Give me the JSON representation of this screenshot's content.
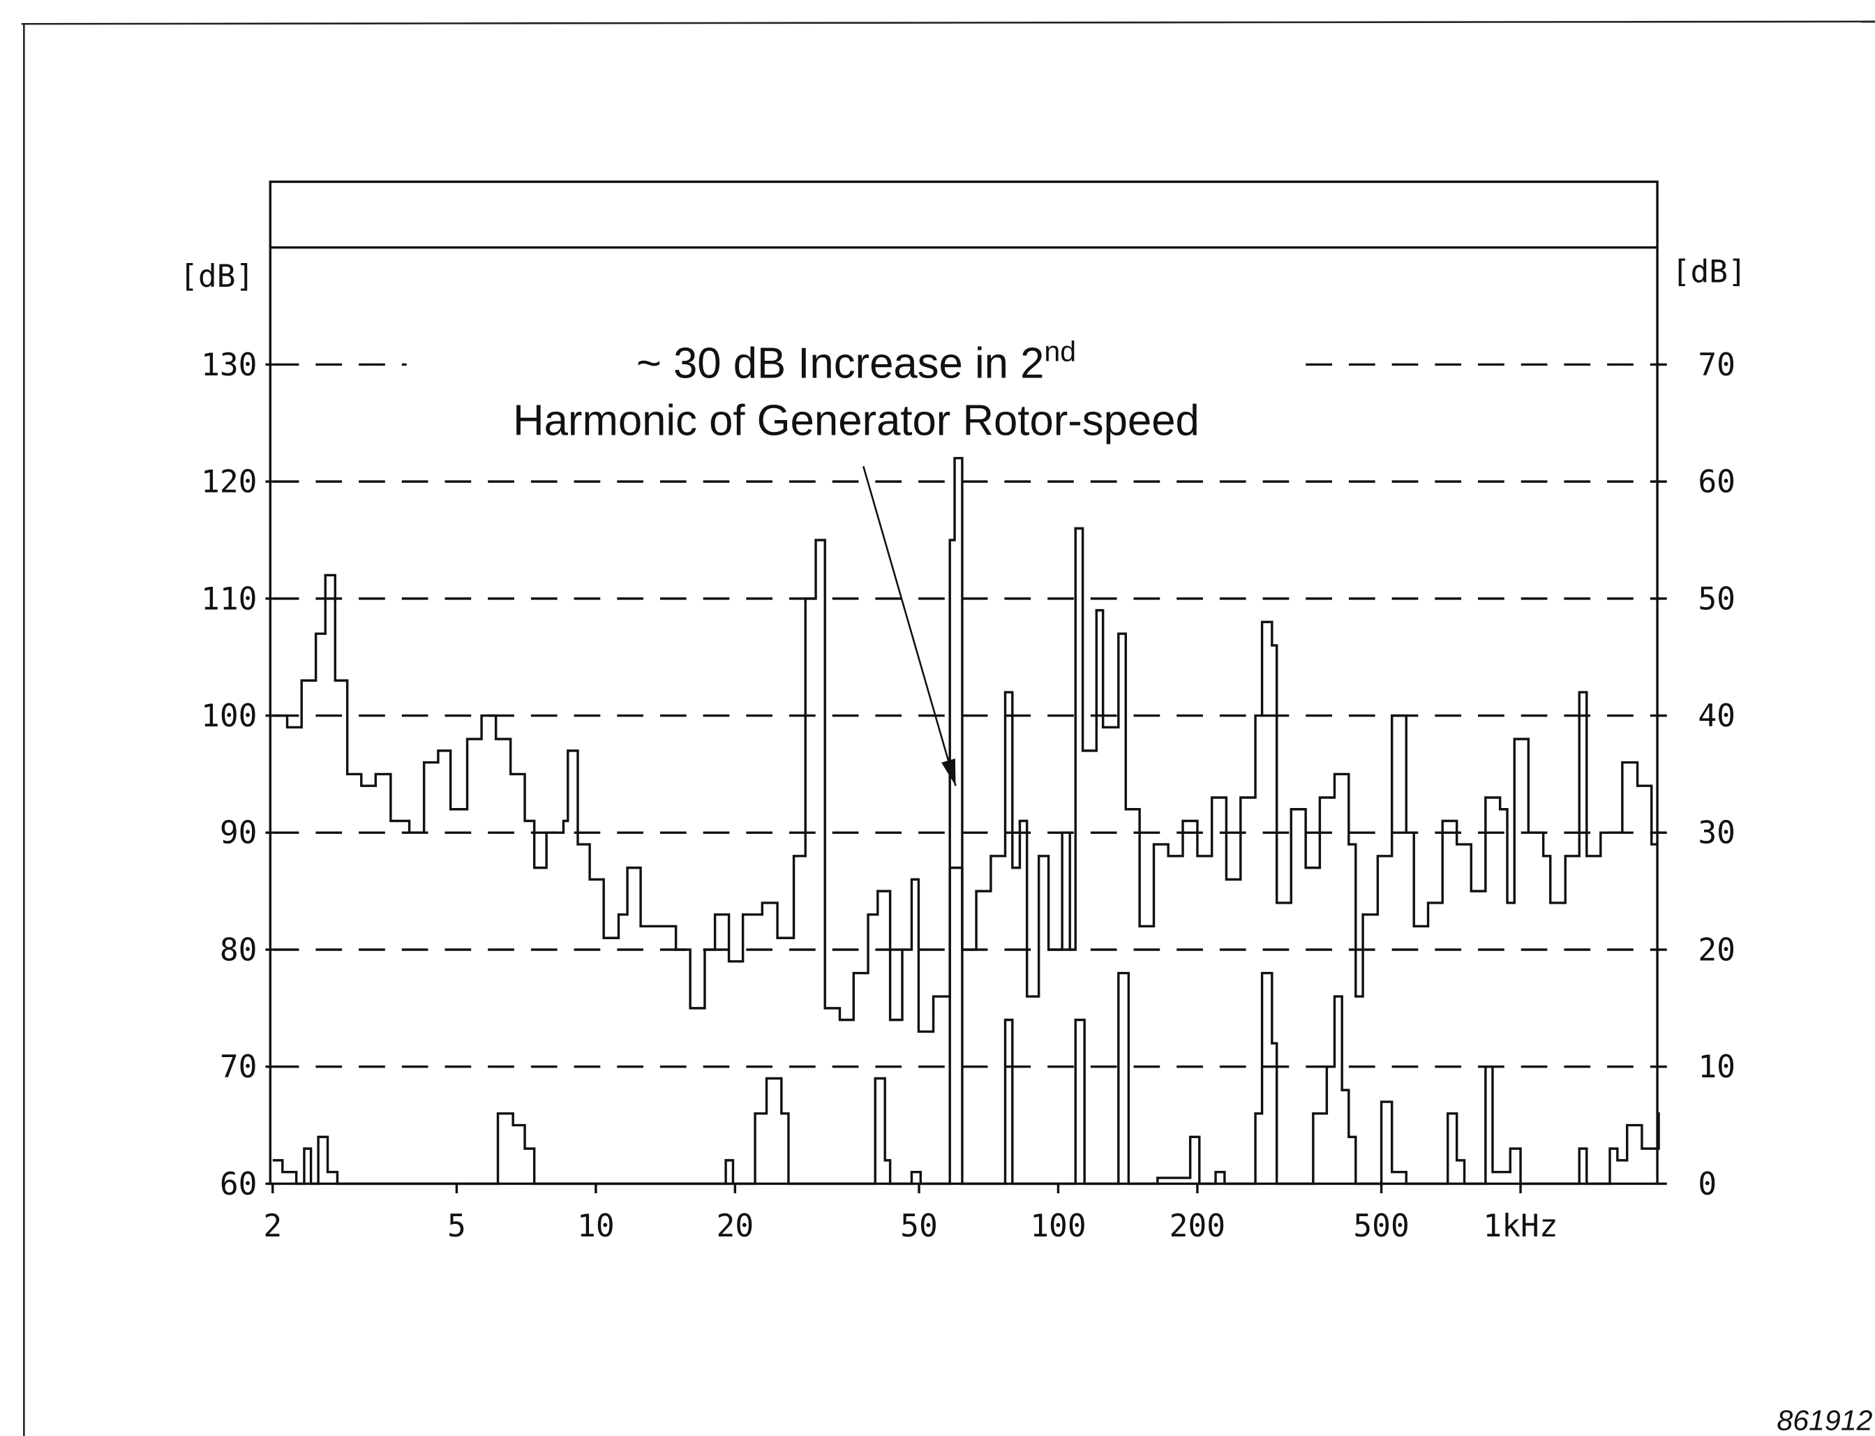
{
  "chart_data": {
    "type": "line",
    "drawstyle": "steps-post",
    "xscale": "log",
    "xlim": [
      2,
      2000
    ],
    "xticks": [
      2,
      5,
      10,
      20,
      50,
      100,
      200,
      500,
      {
        "value": 1000,
        "label": "1kHz"
      }
    ],
    "ylim": [
      60,
      140
    ],
    "yticks": [
      60,
      70,
      80,
      90,
      100,
      110,
      120,
      130
    ],
    "y2lim": [
      0,
      80
    ],
    "y2ticks": [
      0,
      10,
      20,
      30,
      40,
      50,
      60,
      70
    ],
    "ylabel": "[dB]",
    "y2label": "[dB]",
    "grid": true,
    "annotation": {
      "text": "~ 30 dB Increase in 2",
      "superscript": "nd",
      "text2": "Harmonic of Generator Rotor-speed",
      "x": 60,
      "y": 94
    },
    "figure_id": "861912",
    "series": [
      {
        "color": "#111111",
        "x": [
          2.0,
          2.15,
          2.31,
          2.48,
          2.6,
          2.73,
          2.9,
          3.11,
          3.34,
          3.6,
          3.95,
          4.25,
          4.56,
          4.85,
          5.27,
          5.66,
          6.08,
          6.54,
          7.02,
          7.36,
          7.82,
          8.51,
          8.7,
          9.14,
          9.7,
          10.4,
          11.2,
          11.7,
          12.5,
          13.4,
          14.9,
          16.0,
          17.2,
          18.1,
          19.4,
          20.8,
          22.9,
          24.7,
          26.8,
          28.4,
          29.9,
          31.3,
          33.7,
          36.1,
          38.8,
          40.7,
          43.3,
          46.0,
          48.2,
          49.9,
          53.7,
          58.3,
          59.7,
          62.0,
          66.5,
          71.5,
          76.8,
          79.6,
          82.6,
          85.6,
          90.8,
          95.3,
          102,
          106,
          109,
          113,
          121,
          125,
          135,
          140,
          150,
          161,
          173,
          186,
          200,
          215,
          231,
          248,
          267,
          276,
          290,
          297,
          319,
          343,
          368,
          396,
          425,
          440,
          456,
          491,
          527,
          566,
          588,
          631,
          678,
          728,
          782,
          840,
          903,
          936,
          970,
          1040,
          1120,
          1160,
          1250,
          1340,
          1390,
          1490,
          1660,
          1790,
          1920
        ],
        "values": [
          100,
          99,
          103,
          107,
          112,
          103,
          95,
          94,
          95,
          91,
          90,
          96,
          97,
          92,
          98,
          100,
          98,
          95,
          91,
          87,
          90,
          91,
          97,
          89,
          86,
          81,
          83,
          87,
          82,
          82,
          80,
          75,
          80,
          83,
          79,
          83,
          84,
          81,
          88,
          110,
          115,
          75,
          74,
          78,
          83,
          85,
          74,
          80,
          86,
          73,
          76,
          115,
          122,
          80,
          85,
          88,
          102,
          87,
          91,
          76,
          88,
          80,
          90,
          80,
          116,
          97,
          109,
          99,
          107,
          92,
          82,
          89,
          88,
          91,
          88,
          93,
          86,
          93,
          100,
          108,
          106,
          84,
          92,
          87,
          93,
          95,
          89,
          76,
          83,
          88,
          100,
          90,
          82,
          84,
          91,
          89,
          85,
          93,
          92,
          84,
          98,
          90,
          88,
          84,
          88,
          102,
          88,
          90,
          96,
          94,
          89
        ]
      },
      {
        "color": "#111111",
        "axis": "y2",
        "x": [
          2.0,
          2.1,
          2.25,
          2.34,
          2.42,
          2.51,
          2.63,
          2.76,
          6.14,
          6.62,
          7.02,
          7.36,
          19.1,
          19.8,
          22.1,
          23.4,
          25.2,
          26.1,
          40.2,
          42.2,
          43.3,
          48.2,
          50.4,
          58.3,
          62.0,
          76.8,
          79.6,
          109,
          114,
          135,
          142,
          164,
          193,
          202,
          219,
          229,
          267,
          276,
          290,
          297,
          356,
          381,
          396,
          411,
          425,
          440,
          500,
          527,
          566,
          696,
          728,
          756,
          840,
          870,
          950,
          1000,
          1340,
          1390,
          1560,
          1620,
          1700,
          1830,
          1990
        ],
        "values": [
          2,
          1,
          0,
          3,
          0,
          4,
          1,
          0,
          6,
          5,
          3,
          0,
          2,
          0,
          6,
          9,
          6,
          0,
          9,
          2,
          0,
          1,
          0,
          27,
          0,
          14,
          0,
          14,
          0,
          18,
          0,
          0.5,
          4,
          0,
          1,
          0,
          6,
          18,
          12,
          0,
          6,
          10,
          16,
          8,
          4,
          0,
          7,
          1,
          0,
          6,
          2,
          0,
          10,
          1,
          3,
          0,
          3,
          0,
          3,
          2,
          5,
          3,
          6
        ]
      }
    ]
  }
}
